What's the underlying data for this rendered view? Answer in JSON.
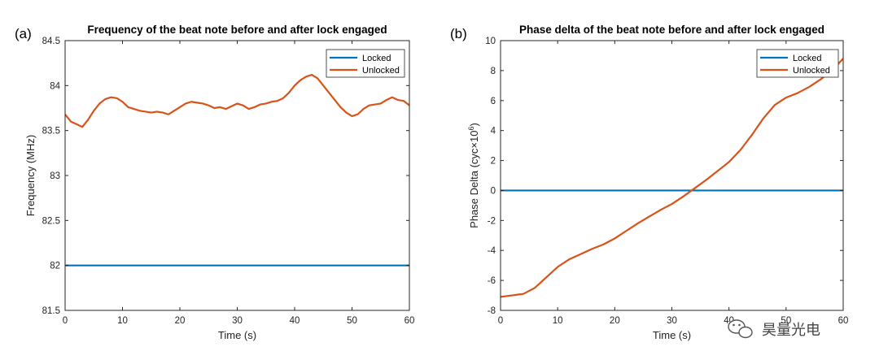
{
  "chart_data": [
    {
      "type": "line",
      "panel_label": "(a)",
      "title": "Frequency of the beat note before and after lock engaged",
      "xlabel": "Time (s)",
      "ylabel": "Frequency (MHz)",
      "xlim": [
        0,
        60
      ],
      "ylim": [
        81.5,
        84.5
      ],
      "xticks": [
        0,
        10,
        20,
        30,
        40,
        50,
        60
      ],
      "yticks": [
        81.5,
        82,
        82.5,
        83,
        83.5,
        84,
        84.5
      ],
      "xtick_labels": [
        "0",
        "10",
        "20",
        "30",
        "40",
        "50",
        "60"
      ],
      "ytick_labels": [
        "81.5",
        "82",
        "82.5",
        "83",
        "83.5",
        "84",
        "84.5"
      ],
      "grid": false,
      "legend_position": "top-right",
      "series": [
        {
          "name": "Locked",
          "color": "#0072BD",
          "x": [
            0,
            60
          ],
          "y": [
            82.0,
            82.0
          ]
        },
        {
          "name": "Unlocked",
          "color": "#D95319",
          "x": [
            0,
            1,
            2,
            3,
            4,
            5,
            6,
            7,
            8,
            9,
            10,
            11,
            12,
            13,
            14,
            15,
            16,
            17,
            18,
            19,
            20,
            21,
            22,
            23,
            24,
            25,
            26,
            27,
            28,
            29,
            30,
            31,
            32,
            33,
            34,
            35,
            36,
            37,
            38,
            39,
            40,
            41,
            42,
            43,
            44,
            45,
            46,
            47,
            48,
            49,
            50,
            51,
            52,
            53,
            54,
            55,
            56,
            57,
            58,
            59,
            60
          ],
          "y": [
            83.68,
            83.6,
            83.57,
            83.54,
            83.62,
            83.72,
            83.8,
            83.85,
            83.87,
            83.86,
            83.82,
            83.76,
            83.74,
            83.72,
            83.71,
            83.7,
            83.71,
            83.7,
            83.68,
            83.72,
            83.76,
            83.8,
            83.82,
            83.81,
            83.8,
            83.78,
            83.75,
            83.76,
            83.74,
            83.77,
            83.8,
            83.78,
            83.74,
            83.76,
            83.79,
            83.8,
            83.82,
            83.83,
            83.86,
            83.92,
            84.0,
            84.06,
            84.1,
            84.12,
            84.08,
            84.0,
            83.92,
            83.84,
            83.76,
            83.7,
            83.66,
            83.68,
            83.74,
            83.78,
            83.79,
            83.8,
            83.84,
            83.87,
            83.84,
            83.83,
            83.78
          ]
        }
      ]
    },
    {
      "type": "line",
      "panel_label": "(b)",
      "title": "Phase delta of the beat note before and after lock engaged",
      "xlabel": "Time (s)",
      "ylabel": "Phase Delta (cyc×10",
      "ylabel_superscript": "6",
      "ylabel_suffix": ")",
      "xlim": [
        0,
        60
      ],
      "ylim": [
        -8,
        10
      ],
      "xticks": [
        0,
        10,
        20,
        30,
        40,
        50,
        60
      ],
      "yticks": [
        -8,
        -6,
        -4,
        -2,
        0,
        2,
        4,
        6,
        8,
        10
      ],
      "xtick_labels": [
        "0",
        "10",
        "20",
        "30",
        "40",
        "50",
        "60"
      ],
      "ytick_labels": [
        "-8",
        "-6",
        "-4",
        "-2",
        "0",
        "2",
        "4",
        "6",
        "8",
        "10"
      ],
      "grid": false,
      "legend_position": "top-right",
      "series": [
        {
          "name": "Locked",
          "color": "#0072BD",
          "x": [
            0,
            60
          ],
          "y": [
            0,
            0
          ]
        },
        {
          "name": "Unlocked",
          "color": "#D95319",
          "x": [
            0,
            2,
            4,
            6,
            8,
            10,
            12,
            14,
            16,
            18,
            20,
            22,
            24,
            26,
            28,
            30,
            32,
            34,
            36,
            38,
            40,
            42,
            44,
            46,
            48,
            50,
            52,
            54,
            56,
            58,
            60
          ],
          "y": [
            -7.1,
            -7.0,
            -6.9,
            -6.5,
            -5.8,
            -5.1,
            -4.6,
            -4.25,
            -3.9,
            -3.6,
            -3.2,
            -2.7,
            -2.2,
            -1.75,
            -1.3,
            -0.9,
            -0.4,
            0.15,
            0.7,
            1.3,
            1.9,
            2.7,
            3.7,
            4.8,
            5.7,
            6.2,
            6.5,
            6.9,
            7.4,
            8.0,
            8.8
          ]
        }
      ]
    }
  ],
  "watermark": {
    "text": "昊量光电",
    "icon": "wechat-icon"
  }
}
